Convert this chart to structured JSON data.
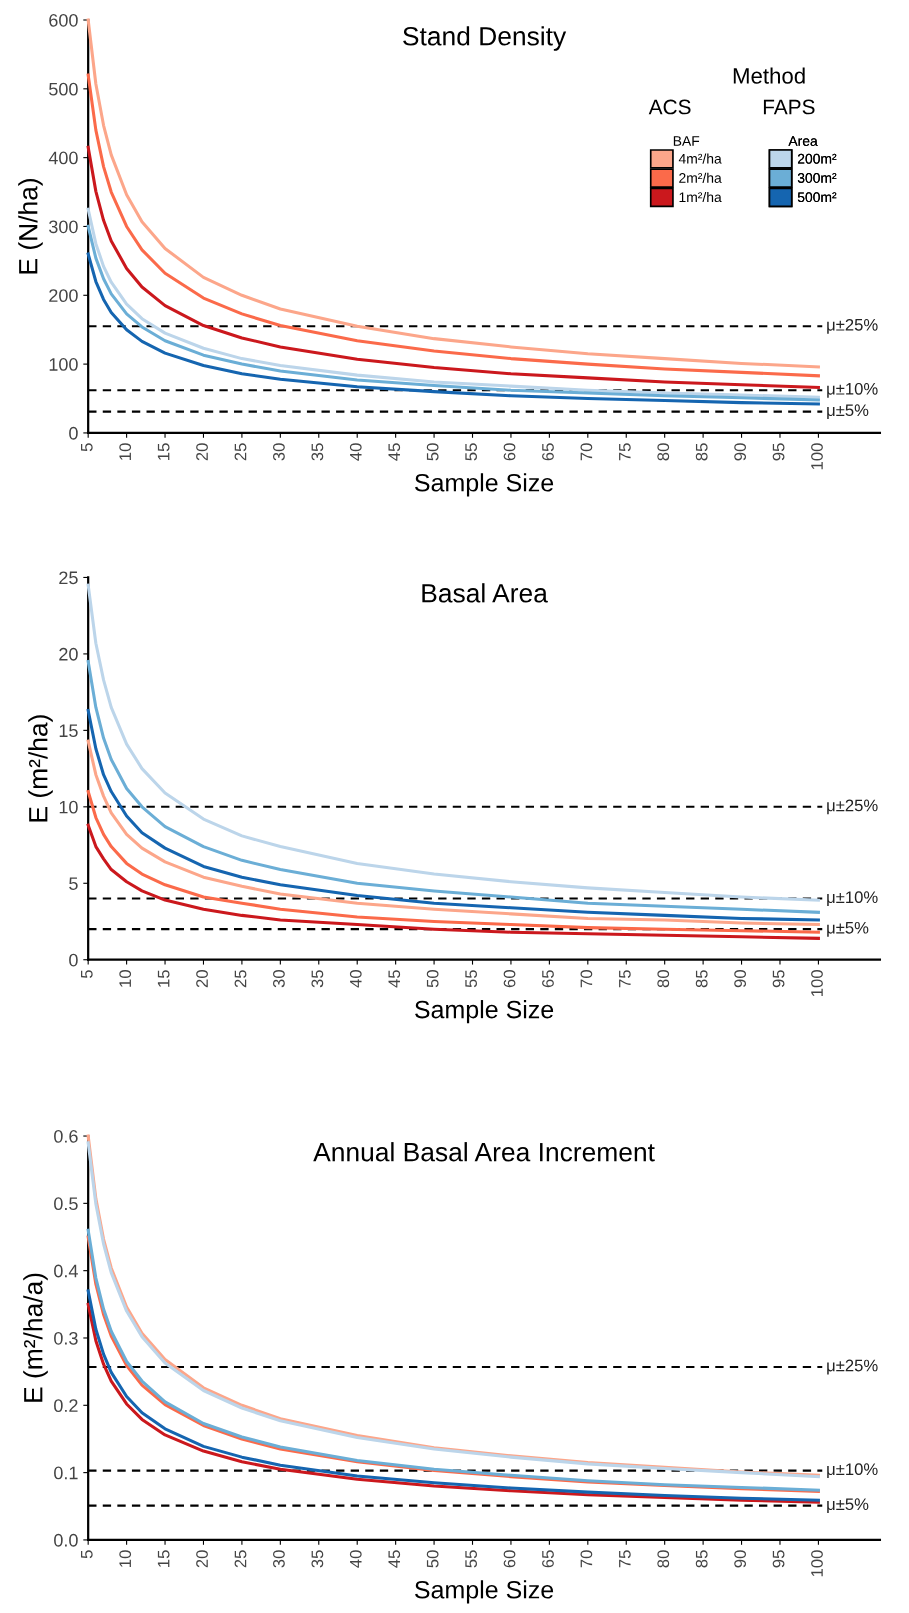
{
  "chart_data": [
    {
      "type": "line",
      "title": "Stand Density",
      "xlabel": "Sample Size",
      "ylabel": "E (N/ha)",
      "legend_title": "Method",
      "legend": "top right",
      "annotations": [
        "ACS",
        "BAF",
        "FAPS",
        "Area"
      ],
      "x": [
        5,
        6,
        7,
        8,
        10,
        12,
        15,
        20,
        25,
        30,
        40,
        50,
        60,
        70,
        80,
        90,
        100
      ],
      "xlim": [
        5,
        108
      ],
      "xticks": [
        5,
        10,
        15,
        20,
        25,
        30,
        35,
        40,
        45,
        50,
        55,
        60,
        65,
        70,
        75,
        80,
        85,
        90,
        95,
        100
      ],
      "ylim": [
        0,
        600
      ],
      "yticks": [
        0,
        100,
        200,
        300,
        400,
        500,
        600
      ],
      "series": [
        {
          "name": "4m²/ha",
          "color": "#fca68a",
          "values": [
            600,
            507,
            447,
            404,
            346,
            307,
            268,
            226,
            200,
            180,
            155,
            137,
            125,
            115,
            108,
            101,
            96
          ]
        },
        {
          "name": "2m²/ha",
          "color": "#fb6a4a",
          "values": [
            520,
            440,
            387,
            350,
            300,
            266,
            232,
            196,
            173,
            156,
            134,
            119,
            108,
            100,
            93,
            88,
            83
          ]
        },
        {
          "name": "1m²/ha",
          "color": "#cb181d",
          "values": [
            415,
            351,
            309,
            279,
            239,
            212,
            185,
            156,
            138,
            125,
            107,
            95,
            86,
            80,
            74,
            70,
            66
          ]
        },
        {
          "name": "200m²",
          "color": "#bcd5ea",
          "values": [
            325,
            275,
            242,
            219,
            187,
            166,
            145,
            123,
            108,
            98,
            84,
            74,
            68,
            62,
            58,
            55,
            52
          ]
        },
        {
          "name": "300m²",
          "color": "#6baed6",
          "values": [
            300,
            254,
            224,
            202,
            173,
            154,
            134,
            113,
            100,
            90,
            77,
            69,
            62,
            58,
            54,
            51,
            48
          ]
        },
        {
          "name": "500m²",
          "color": "#1565b0",
          "values": [
            260,
            220,
            194,
            175,
            150,
            133,
            116,
            98,
            86,
            78,
            67,
            60,
            54,
            50,
            47,
            44,
            42
          ]
        }
      ],
      "ref_lines": [
        {
          "axis": "y",
          "value": 155,
          "label": "μ±25%",
          "line_style": "dashed",
          "color": "#000000"
        },
        {
          "axis": "y",
          "value": 62,
          "label": "μ±10%",
          "line_style": "dashed",
          "color": "#000000"
        },
        {
          "axis": "y",
          "value": 31,
          "label": "μ±5%",
          "line_style": "dashed",
          "color": "#000000"
        }
      ]
    },
    {
      "type": "line",
      "title": "Basal Area",
      "xlabel": "Sample Size",
      "ylabel": "E (m²/ha)",
      "x": [
        5,
        6,
        7,
        8,
        10,
        12,
        15,
        20,
        25,
        30,
        40,
        50,
        60,
        70,
        80,
        90,
        100
      ],
      "xlim": [
        5,
        108
      ],
      "xticks": [
        5,
        10,
        15,
        20,
        25,
        30,
        35,
        40,
        45,
        50,
        55,
        60,
        65,
        70,
        75,
        80,
        85,
        90,
        95,
        100
      ],
      "ylim": [
        0,
        25
      ],
      "yticks": [
        0,
        5,
        10,
        15,
        20,
        25
      ],
      "series": [
        {
          "color": "#fca68a",
          "values": [
            14.3,
            12.1,
            10.7,
            9.6,
            8.2,
            7.3,
            6.4,
            5.4,
            4.8,
            4.3,
            3.7,
            3.3,
            3.0,
            2.7,
            2.6,
            2.4,
            2.3
          ]
        },
        {
          "color": "#fb6a4a",
          "values": [
            11,
            9.3,
            8.2,
            7.4,
            6.3,
            5.6,
            4.9,
            4.1,
            3.7,
            3.3,
            2.8,
            2.5,
            2.3,
            2.1,
            2.0,
            1.9,
            1.8
          ]
        },
        {
          "color": "#cb181d",
          "values": [
            8.8,
            7.4,
            6.6,
            5.9,
            5.1,
            4.5,
            3.9,
            3.3,
            2.9,
            2.6,
            2.3,
            2.0,
            1.8,
            1.7,
            1.6,
            1.5,
            1.4
          ]
        },
        {
          "color": "#bcd5ea",
          "values": [
            24.5,
            20.7,
            18.3,
            16.5,
            14.1,
            12.5,
            10.9,
            9.2,
            8.1,
            7.4,
            6.3,
            5.6,
            5.1,
            4.7,
            4.4,
            4.1,
            3.9
          ]
        },
        {
          "color": "#6baed6",
          "values": [
            19.5,
            16.5,
            14.5,
            13.1,
            11.2,
            10.0,
            8.7,
            7.4,
            6.5,
            5.9,
            5.0,
            4.5,
            4.1,
            3.7,
            3.5,
            3.3,
            3.1
          ]
        },
        {
          "color": "#1565b0",
          "values": [
            16.3,
            13.8,
            12.1,
            11.0,
            9.4,
            8.3,
            7.3,
            6.1,
            5.4,
            4.9,
            4.2,
            3.7,
            3.4,
            3.1,
            2.9,
            2.7,
            2.6
          ]
        }
      ],
      "ref_lines": [
        {
          "axis": "y",
          "value": 10,
          "label": "μ±25%",
          "line_style": "dashed",
          "color": "#000000"
        },
        {
          "axis": "y",
          "value": 4,
          "label": "μ±10%",
          "line_style": "dashed",
          "color": "#000000"
        },
        {
          "axis": "y",
          "value": 2,
          "label": "μ±5%",
          "line_style": "dashed",
          "color": "#000000"
        }
      ]
    },
    {
      "type": "line",
      "title": "Annual Basal Area Increment",
      "xlabel": "Sample Size",
      "ylabel": "E (m²/ha/a)",
      "x": [
        5,
        6,
        7,
        8,
        10,
        12,
        15,
        20,
        25,
        30,
        40,
        50,
        60,
        70,
        80,
        90,
        100
      ],
      "xlim": [
        5,
        108
      ],
      "xticks": [
        5,
        10,
        15,
        20,
        25,
        30,
        35,
        40,
        45,
        50,
        55,
        60,
        65,
        70,
        75,
        80,
        85,
        90,
        95,
        100
      ],
      "ylim": [
        0,
        0.6
      ],
      "yticks": [
        {
          "value": 0,
          "label": "0.0"
        },
        {
          "value": 0.1,
          "label": "0.1"
        },
        {
          "value": 0.2,
          "label": "0.2"
        },
        {
          "value": 0.3,
          "label": "0.3"
        },
        {
          "value": 0.4,
          "label": "0.4"
        },
        {
          "value": 0.5,
          "label": "0.5"
        },
        {
          "value": 0.6,
          "label": "0.6"
        }
      ],
      "series": [
        {
          "color": "#fca68a",
          "values": [
            0.6,
            0.507,
            0.447,
            0.404,
            0.346,
            0.307,
            0.268,
            0.226,
            0.2,
            0.18,
            0.155,
            0.137,
            0.125,
            0.115,
            0.108,
            0.101,
            0.096
          ]
        },
        {
          "color": "#fb6a4a",
          "values": [
            0.45,
            0.38,
            0.335,
            0.303,
            0.259,
            0.23,
            0.201,
            0.17,
            0.15,
            0.135,
            0.116,
            0.103,
            0.094,
            0.086,
            0.081,
            0.076,
            0.072
          ]
        },
        {
          "color": "#cb181d",
          "values": [
            0.35,
            0.296,
            0.261,
            0.236,
            0.202,
            0.179,
            0.156,
            0.132,
            0.116,
            0.105,
            0.09,
            0.08,
            0.073,
            0.067,
            0.063,
            0.059,
            0.056
          ]
        },
        {
          "color": "#bcd5ea",
          "values": [
            0.59,
            0.499,
            0.44,
            0.397,
            0.34,
            0.302,
            0.263,
            0.222,
            0.196,
            0.177,
            0.152,
            0.135,
            0.123,
            0.113,
            0.106,
            0.1,
            0.094
          ]
        },
        {
          "color": "#6baed6",
          "values": [
            0.46,
            0.389,
            0.343,
            0.31,
            0.265,
            0.236,
            0.205,
            0.173,
            0.153,
            0.138,
            0.118,
            0.105,
            0.096,
            0.088,
            0.082,
            0.078,
            0.074
          ]
        },
        {
          "color": "#1565b0",
          "values": [
            0.37,
            0.313,
            0.276,
            0.249,
            0.213,
            0.189,
            0.165,
            0.139,
            0.123,
            0.111,
            0.095,
            0.085,
            0.077,
            0.071,
            0.066,
            0.062,
            0.059
          ]
        }
      ],
      "ref_lines": [
        {
          "axis": "y",
          "value": 0.257,
          "label": "μ±25%",
          "line_style": "dashed",
          "color": "#000000"
        },
        {
          "axis": "y",
          "value": 0.103,
          "label": "μ±10%",
          "line_style": "dashed",
          "color": "#000000"
        },
        {
          "axis": "y",
          "value": 0.051,
          "label": "μ±5%",
          "line_style": "dashed",
          "color": "#000000"
        }
      ]
    }
  ]
}
